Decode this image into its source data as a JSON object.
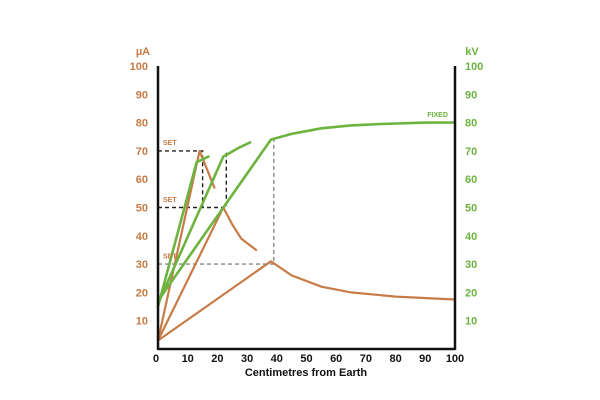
{
  "chart_data": {
    "type": "line",
    "title": "",
    "xlabel": "Centimetres from Earth",
    "x_range": [
      0,
      100
    ],
    "x_ticks": [
      "10",
      "20",
      "30",
      "40",
      "50",
      "60",
      "70",
      "80",
      "90",
      "100"
    ],
    "x_origin_label": "0",
    "left_axis": {
      "unit": "µA",
      "range": [
        0,
        100
      ],
      "ticks": [
        "10",
        "20",
        "30",
        "40",
        "50",
        "60",
        "70",
        "80",
        "90",
        "100"
      ],
      "color": "#c77b46"
    },
    "right_axis": {
      "unit": "kV",
      "range": [
        0,
        100
      ],
      "ticks": [
        "10",
        "20",
        "30",
        "40",
        "50",
        "60",
        "70",
        "80",
        "90",
        "100"
      ],
      "color": "#6db33f"
    },
    "grid": false,
    "annotations": [
      {
        "text": "SET",
        "x": 1,
        "y": 72,
        "color": "#c77b46"
      },
      {
        "text": "SET",
        "x": 1,
        "y": 52,
        "color": "#c77b46"
      },
      {
        "text": "SET",
        "x": 1,
        "y": 32,
        "color": "#c77b46"
      },
      {
        "text": "FIXED",
        "x": 90,
        "y": 82,
        "color": "#6db33f"
      }
    ],
    "series": [
      {
        "axis": "left",
        "color": "#c77b46",
        "points": [
          [
            0,
            3
          ],
          [
            14,
            70
          ],
          [
            19,
            57
          ]
        ]
      },
      {
        "axis": "left",
        "color": "#c77b46",
        "points": [
          [
            0,
            3
          ],
          [
            22,
            50
          ],
          [
            25,
            44
          ],
          [
            28,
            39
          ],
          [
            33,
            35
          ]
        ]
      },
      {
        "axis": "left",
        "color": "#c77b46",
        "points": [
          [
            0,
            3
          ],
          [
            38,
            31
          ],
          [
            45,
            26
          ],
          [
            55,
            22
          ],
          [
            65,
            20
          ],
          [
            80,
            18.5
          ],
          [
            100,
            17.5
          ]
        ]
      },
      {
        "axis": "right",
        "color": "#6db33f",
        "points": [
          [
            0,
            15
          ],
          [
            13,
            66
          ],
          [
            17,
            68
          ]
        ]
      },
      {
        "axis": "right",
        "color": "#6db33f",
        "points": [
          [
            0,
            16
          ],
          [
            22,
            68
          ],
          [
            27,
            71
          ],
          [
            31,
            73
          ]
        ]
      },
      {
        "axis": "right",
        "color": "#6db33f",
        "points": [
          [
            0,
            17
          ],
          [
            38,
            74
          ],
          [
            45,
            76
          ],
          [
            55,
            78
          ],
          [
            65,
            79
          ],
          [
            75,
            79.5
          ],
          [
            90,
            80
          ],
          [
            100,
            80
          ]
        ]
      }
    ],
    "guides": [
      {
        "color": "#222",
        "dash": "4,3",
        "points": [
          [
            0,
            70
          ],
          [
            15,
            70
          ],
          [
            15,
            50
          ]
        ]
      },
      {
        "color": "#222",
        "dash": "4,3",
        "points": [
          [
            0,
            50
          ],
          [
            23,
            50
          ],
          [
            23,
            70
          ]
        ]
      },
      {
        "color": "#888",
        "dash": "4,3",
        "points": [
          [
            0,
            30
          ],
          [
            39,
            30
          ],
          [
            39,
            74
          ]
        ]
      }
    ]
  }
}
